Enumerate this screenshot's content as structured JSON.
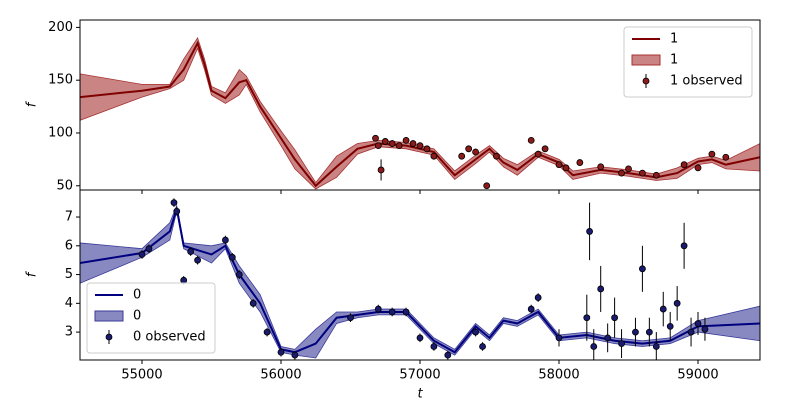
{
  "chart_data": [
    {
      "type": "line",
      "ylabel": "f",
      "legend": "upper right",
      "xlim": [
        54554,
        59446
      ],
      "ylim": [
        46,
        207
      ],
      "xticks": [
        55000,
        56000,
        57000,
        58000,
        59000
      ],
      "yticks": [
        50,
        100,
        150,
        200
      ],
      "series": [
        {
          "name": "1",
          "kind": "line",
          "color": "#7f0000",
          "x": [
            54554,
            55000,
            55200,
            55300,
            55400,
            55450,
            55500,
            55600,
            55700,
            55750,
            55850,
            56000,
            56100,
            56250,
            56400,
            56550,
            56700,
            56900,
            57100,
            57250,
            57400,
            57500,
            57600,
            57700,
            57850,
            58000,
            58100,
            58300,
            58500,
            58700,
            58850,
            59000,
            59100,
            59200,
            59446
          ],
          "values": [
            134,
            140,
            144,
            160,
            185,
            165,
            140,
            133,
            148,
            150,
            125,
            95,
            75,
            50,
            68,
            85,
            90,
            88,
            82,
            60,
            75,
            85,
            72,
            65,
            80,
            72,
            60,
            65,
            62,
            58,
            62,
            73,
            75,
            70,
            77
          ]
        },
        {
          "name": "1",
          "kind": "band",
          "color": "#a83232",
          "x": [
            54554,
            55000,
            55200,
            55300,
            55400,
            55450,
            55500,
            55600,
            55700,
            55750,
            55850,
            56000,
            56100,
            56250,
            56400,
            56550,
            56700,
            56900,
            57100,
            57250,
            57400,
            57500,
            57600,
            57700,
            57850,
            58000,
            58100,
            58300,
            58500,
            58700,
            58850,
            59000,
            59100,
            59200,
            59446
          ],
          "lower": [
            112,
            134,
            142,
            150,
            180,
            160,
            136,
            128,
            136,
            146,
            120,
            88,
            66,
            47,
            58,
            80,
            87,
            85,
            79,
            56,
            71,
            82,
            68,
            60,
            77,
            69,
            56,
            62,
            59,
            55,
            57,
            70,
            72,
            66,
            64
          ],
          "upper": [
            156,
            146,
            146,
            170,
            190,
            170,
            144,
            138,
            160,
            154,
            130,
            102,
            84,
            53,
            78,
            90,
            93,
            91,
            85,
            64,
            79,
            88,
            76,
            70,
            83,
            75,
            64,
            68,
            65,
            61,
            67,
            76,
            78,
            74,
            90
          ]
        },
        {
          "name": "1 observed",
          "kind": "points",
          "color": "#8b1a1a",
          "x": [
            56680,
            56700,
            56720,
            56750,
            56800,
            56850,
            56900,
            56950,
            57000,
            57050,
            57100,
            57300,
            57350,
            57400,
            57480,
            57550,
            57800,
            57850,
            57900,
            58000,
            58050,
            58150,
            58300,
            58450,
            58500,
            58600,
            58700,
            58900,
            59000,
            59100,
            59200
          ],
          "values": [
            95,
            88,
            65,
            92,
            90,
            88,
            93,
            90,
            88,
            85,
            78,
            78,
            85,
            82,
            50,
            78,
            93,
            80,
            85,
            70,
            67,
            72,
            68,
            62,
            66,
            62,
            60,
            70,
            67,
            80,
            77
          ],
          "errors": [
            3,
            3,
            10,
            3,
            3,
            3,
            3,
            3,
            3,
            3,
            3,
            3,
            3,
            3,
            3,
            3,
            3,
            3,
            3,
            3,
            3,
            3,
            3,
            3,
            3,
            3,
            3,
            3,
            3,
            3,
            3
          ]
        }
      ]
    },
    {
      "type": "line",
      "ylabel": "f",
      "xlabel": "t",
      "legend": "lower left",
      "xlim": [
        54554,
        59446
      ],
      "ylim": [
        2.03,
        7.94
      ],
      "xticks": [
        55000,
        56000,
        57000,
        58000,
        59000
      ],
      "yticks": [
        3,
        4,
        5,
        6,
        7
      ],
      "series": [
        {
          "name": "0",
          "kind": "line",
          "color": "#00007f",
          "x": [
            54554,
            55000,
            55200,
            55250,
            55300,
            55500,
            55600,
            55700,
            55850,
            56000,
            56100,
            56250,
            56400,
            56550,
            56700,
            56900,
            57100,
            57250,
            57400,
            57500,
            57600,
            57700,
            57850,
            58000,
            58200,
            58400,
            58600,
            58800,
            59000,
            59446
          ],
          "values": [
            5.4,
            5.75,
            6.5,
            7.3,
            6.0,
            5.7,
            6.0,
            5.0,
            4.0,
            2.4,
            2.3,
            2.6,
            3.5,
            3.6,
            3.7,
            3.7,
            2.7,
            2.3,
            3.2,
            2.8,
            3.4,
            3.3,
            3.7,
            2.8,
            2.9,
            2.7,
            2.6,
            2.7,
            3.2,
            3.3
          ]
        },
        {
          "name": "0",
          "kind": "band",
          "color": "#3a3a9a",
          "x": [
            54554,
            55000,
            55200,
            55250,
            55300,
            55500,
            55600,
            55700,
            55850,
            56000,
            56100,
            56250,
            56400,
            56550,
            56700,
            56900,
            57100,
            57250,
            57400,
            57500,
            57600,
            57700,
            57850,
            58000,
            58200,
            58400,
            58600,
            58800,
            59000,
            59446
          ],
          "lower": [
            4.7,
            5.6,
            6.2,
            7.2,
            5.9,
            5.4,
            5.9,
            4.7,
            3.7,
            2.3,
            2.2,
            2.1,
            3.3,
            3.5,
            3.6,
            3.6,
            2.6,
            2.2,
            3.1,
            2.7,
            3.3,
            3.2,
            3.6,
            2.7,
            2.8,
            2.6,
            2.5,
            2.6,
            3.0,
            2.7
          ],
          "upper": [
            6.1,
            5.9,
            6.8,
            7.4,
            6.1,
            6.0,
            6.1,
            5.3,
            4.3,
            2.5,
            2.4,
            3.1,
            3.7,
            3.7,
            3.8,
            3.8,
            2.8,
            2.4,
            3.3,
            2.9,
            3.5,
            3.4,
            3.8,
            2.9,
            3.0,
            2.8,
            2.7,
            2.8,
            3.4,
            3.9
          ]
        },
        {
          "name": "0 observed",
          "kind": "points",
          "color": "#1a1a6e",
          "x": [
            55000,
            55050,
            55230,
            55250,
            55300,
            55350,
            55400,
            55600,
            55650,
            55700,
            55800,
            55900,
            56000,
            56100,
            56500,
            56700,
            56800,
            56900,
            57000,
            57100,
            57200,
            57400,
            57450,
            57800,
            57850,
            58000,
            58200,
            58220,
            58250,
            58300,
            58350,
            58400,
            58450,
            58550,
            58600,
            58650,
            58700,
            58750,
            58800,
            58850,
            58900,
            58950,
            59000,
            59050
          ],
          "values": [
            5.7,
            5.9,
            7.5,
            7.2,
            4.8,
            5.8,
            5.5,
            6.2,
            5.6,
            5.0,
            4.0,
            3.0,
            2.3,
            2.2,
            3.5,
            3.8,
            3.7,
            3.7,
            2.8,
            2.5,
            2.2,
            3.0,
            2.5,
            3.8,
            4.2,
            2.8,
            3.5,
            6.5,
            2.5,
            4.5,
            2.8,
            3.5,
            2.6,
            3.0,
            5.2,
            3.0,
            2.5,
            3.8,
            3.2,
            4.0,
            6.0,
            3.0,
            3.3,
            3.1
          ],
          "errors": [
            0.15,
            0.15,
            0.15,
            0.15,
            0.15,
            0.15,
            0.15,
            0.15,
            0.15,
            0.15,
            0.15,
            0.15,
            0.15,
            0.15,
            0.15,
            0.15,
            0.15,
            0.15,
            0.15,
            0.15,
            0.15,
            0.15,
            0.15,
            0.15,
            0.15,
            0.3,
            0.8,
            1,
            0.6,
            0.8,
            0.5,
            0.7,
            0.5,
            0.5,
            0.8,
            0.5,
            0.5,
            0.6,
            0.5,
            0.6,
            0.8,
            0.5,
            0.4,
            0.4
          ]
        }
      ]
    }
  ]
}
